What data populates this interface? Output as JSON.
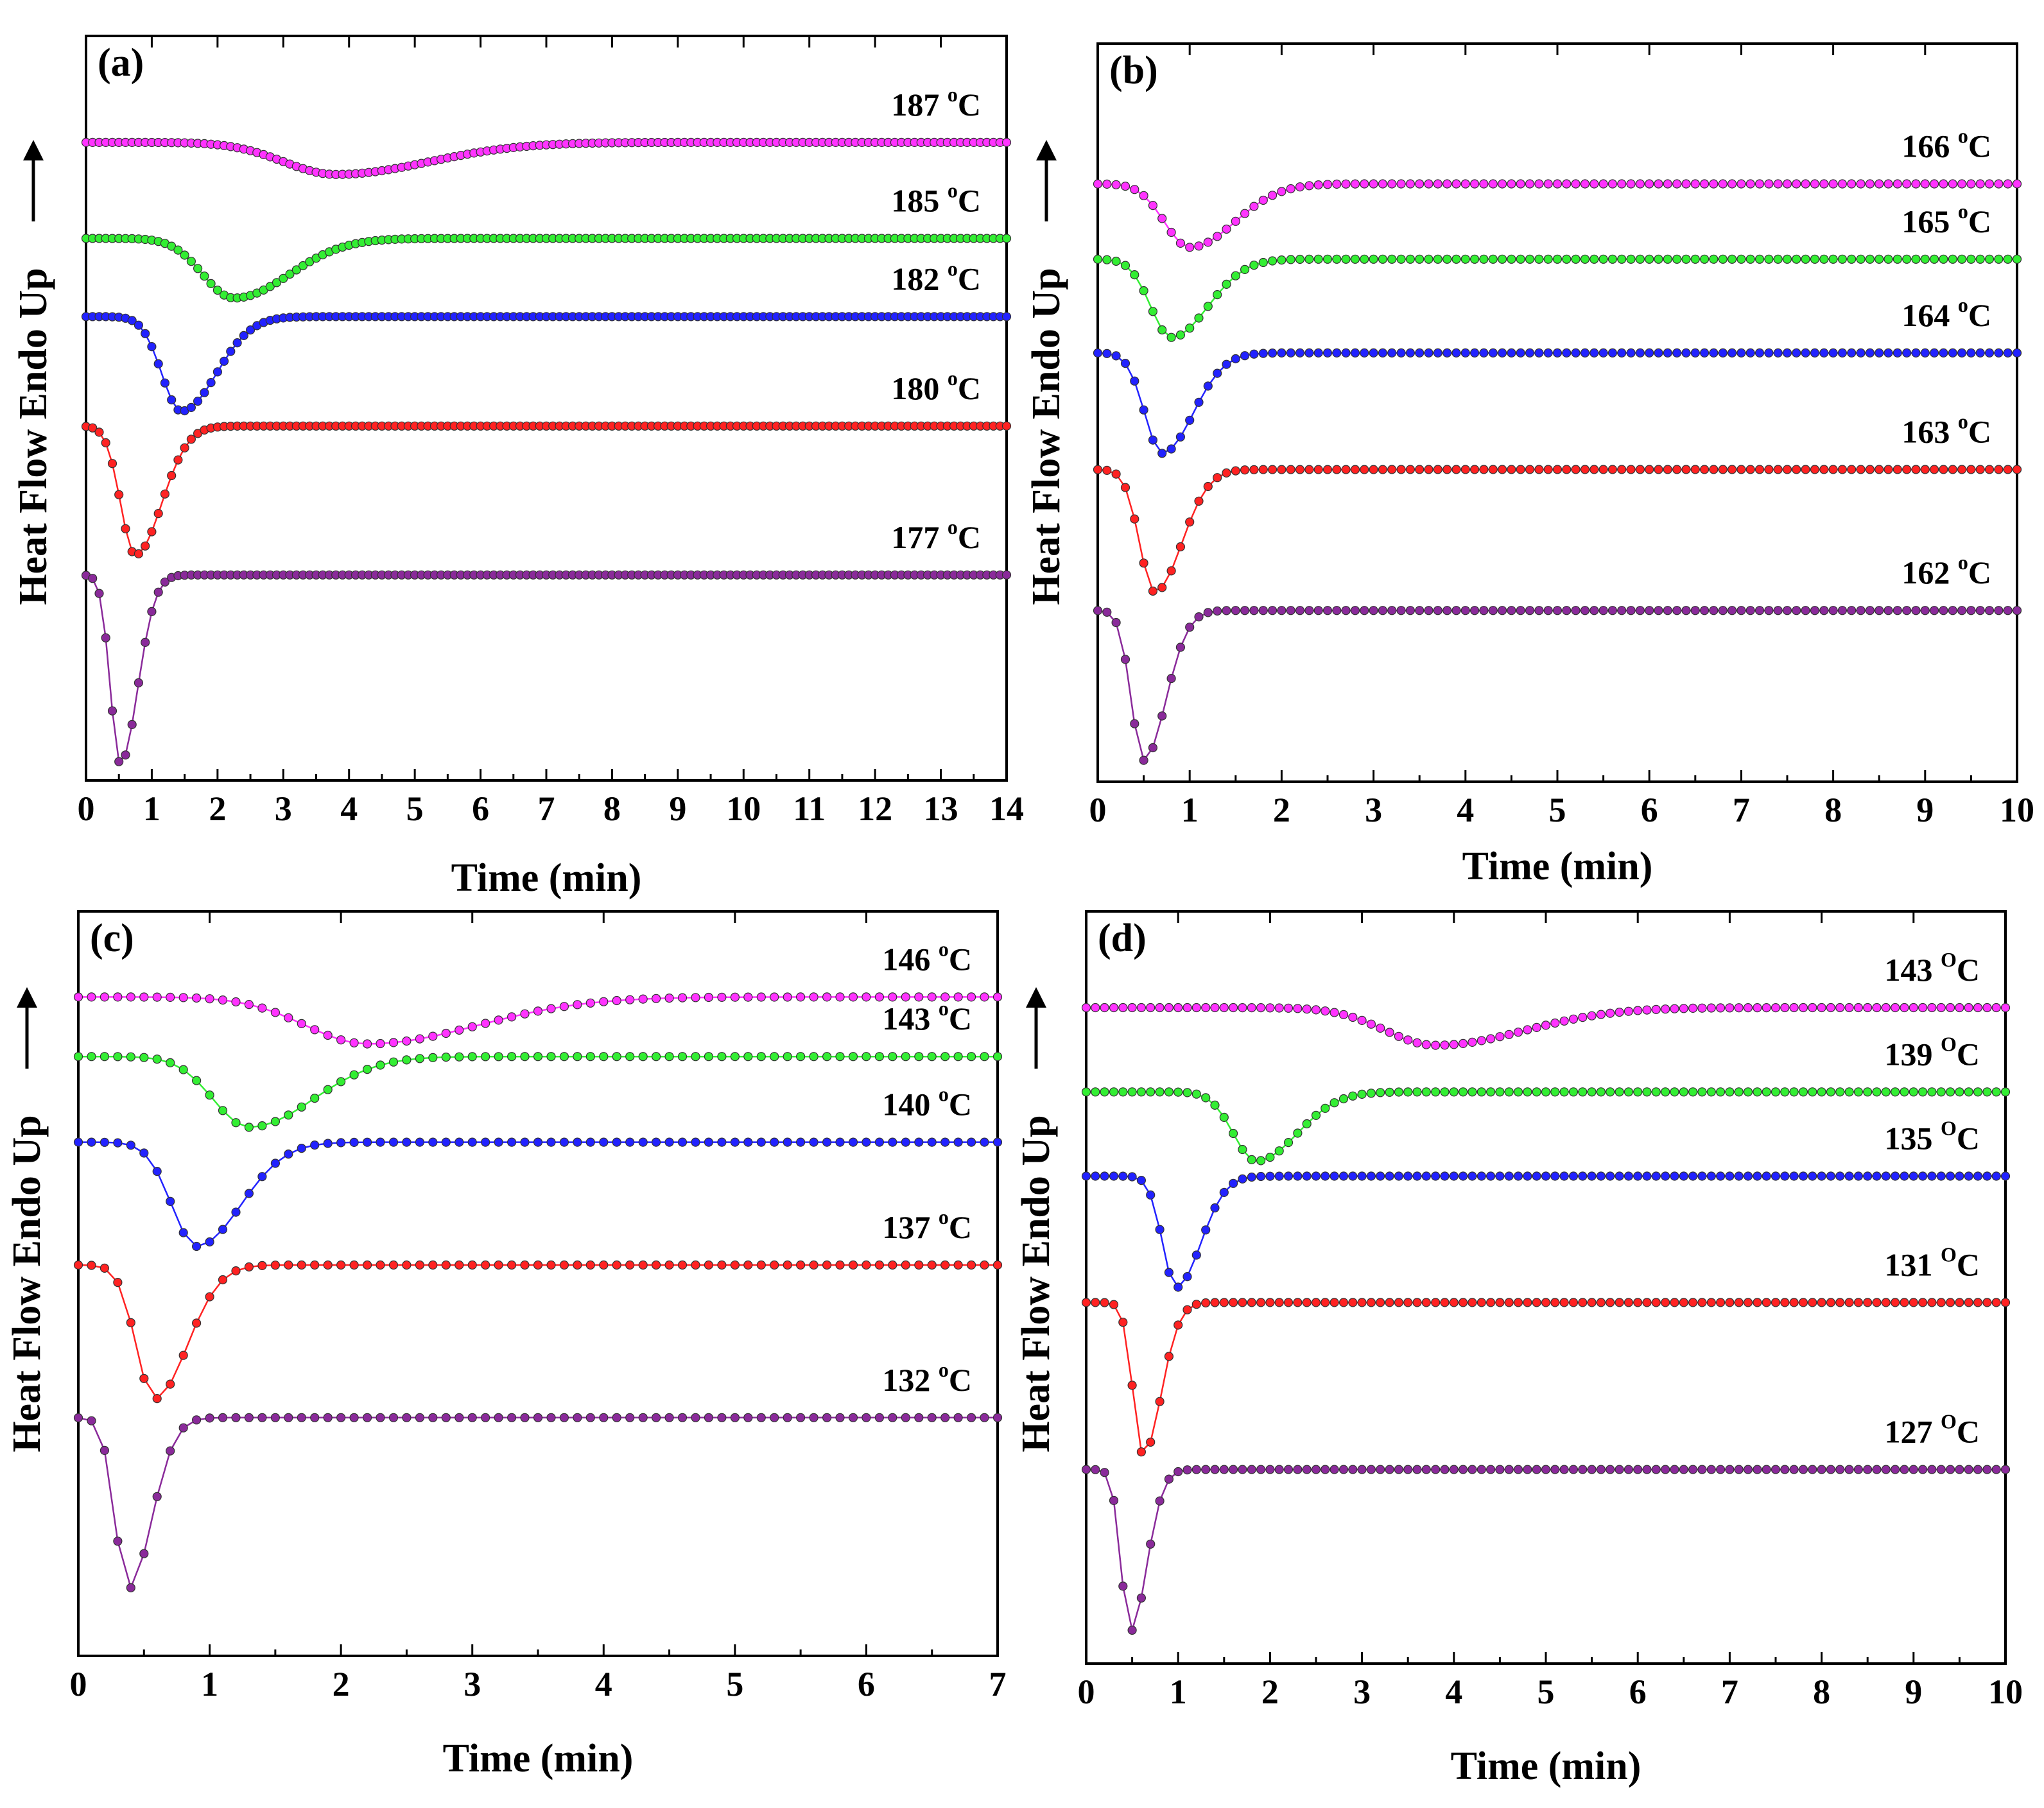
{
  "y_axis_label": "Heat Flow Endo Up",
  "x_axis_label": "Time (min)",
  "colors": {
    "magenta": "#ff33ff",
    "green": "#33ee33",
    "blue": "#2222ff",
    "red": "#ff2222",
    "purple": "#8a2a9a",
    "marker_edge": "#000000"
  },
  "chart_data": [
    {
      "type": "line",
      "panel_label": "(a)",
      "xlabel": "Time (min)",
      "ylabel": "Heat Flow Endo Up",
      "xlim": [
        0,
        14
      ],
      "x_ticks": [
        "0",
        "1",
        "2",
        "3",
        "4",
        "5",
        "6",
        "7",
        "8",
        "9",
        "10",
        "11",
        "12",
        "13",
        "14"
      ],
      "y_ticks_shown": false,
      "series": [
        {
          "name": "187",
          "unit_sup": "o",
          "unit": "C",
          "color": "magenta",
          "baseline": 0.857,
          "t_min": 3.8,
          "depth": 0.043,
          "width": 1.6,
          "dot_step": 0.1,
          "label_pos": "right"
        },
        {
          "name": "185",
          "unit_sup": "o",
          "unit": "C",
          "color": "green",
          "baseline": 0.728,
          "t_min": 2.25,
          "depth": 0.08,
          "width": 0.95,
          "dot_step": 0.1,
          "label_pos": "right"
        },
        {
          "name": "182",
          "unit_sup": "o",
          "unit": "C",
          "color": "blue",
          "baseline": 0.623,
          "t_min": 1.45,
          "depth": 0.127,
          "width": 0.6,
          "dot_step": 0.1,
          "label_pos": "right"
        },
        {
          "name": "180",
          "unit_sup": "o",
          "unit": "C",
          "color": "red",
          "baseline": 0.476,
          "t_min": 0.75,
          "depth": 0.173,
          "width": 0.45,
          "dot_step": 0.1,
          "label_pos": "right"
        },
        {
          "name": "177",
          "unit_sup": "o",
          "unit": "C",
          "color": "purple",
          "baseline": 0.276,
          "t_min": 0.52,
          "depth": 0.253,
          "width": 0.3,
          "dot_step": 0.1,
          "label_pos": "right"
        }
      ]
    },
    {
      "type": "line",
      "panel_label": "(b)",
      "xlabel": "Time (min)",
      "ylabel": "Heat Flow Endo Up",
      "xlim": [
        0,
        10
      ],
      "x_ticks": [
        "0",
        "1",
        "2",
        "3",
        "4",
        "5",
        "6",
        "7",
        "8",
        "9",
        "10"
      ],
      "y_ticks_shown": false,
      "series": [
        {
          "name": "166",
          "unit_sup": "o",
          "unit": "C",
          "color": "magenta",
          "baseline": 0.81,
          "t_min": 1.0,
          "depth": 0.086,
          "width": 0.55,
          "dot_step": 0.1,
          "label_pos": "right"
        },
        {
          "name": "165",
          "unit_sup": "o",
          "unit": "C",
          "color": "green",
          "baseline": 0.708,
          "t_min": 0.8,
          "depth": 0.106,
          "width": 0.45,
          "dot_step": 0.1,
          "label_pos": "right"
        },
        {
          "name": "164",
          "unit_sup": "o",
          "unit": "C",
          "color": "blue",
          "baseline": 0.581,
          "t_min": 0.7,
          "depth": 0.136,
          "width": 0.38,
          "dot_step": 0.1,
          "label_pos": "right"
        },
        {
          "name": "163",
          "unit_sup": "o",
          "unit": "C",
          "color": "red",
          "baseline": 0.423,
          "t_min": 0.62,
          "depth": 0.166,
          "width": 0.33,
          "dot_step": 0.1,
          "label_pos": "right"
        },
        {
          "name": "162",
          "unit_sup": "o",
          "unit": "C",
          "color": "purple",
          "baseline": 0.232,
          "t_min": 0.5,
          "depth": 0.203,
          "width": 0.27,
          "dot_step": 0.1,
          "label_pos": "right"
        }
      ]
    },
    {
      "type": "line",
      "panel_label": "(c)",
      "xlabel": "Time (min)",
      "ylabel": "Heat Flow Endo Up",
      "xlim": [
        0,
        7
      ],
      "x_ticks": [
        "0",
        "1",
        "2",
        "3",
        "4",
        "5",
        "6",
        "7"
      ],
      "y_ticks_shown": false,
      "series": [
        {
          "name": "146",
          "unit_sup": "o",
          "unit": "C",
          "color": "magenta",
          "baseline": 0.885,
          "t_min": 2.2,
          "depth": 0.063,
          "width": 0.95,
          "dot_step": 0.1,
          "label_pos": "right"
        },
        {
          "name": "143",
          "unit_sup": "o",
          "unit": "C",
          "color": "green",
          "baseline": 0.805,
          "t_min": 1.3,
          "depth": 0.095,
          "width": 0.55,
          "dot_step": 0.1,
          "label_pos": "right"
        },
        {
          "name": "140",
          "unit_sup": "o",
          "unit": "C",
          "color": "blue",
          "baseline": 0.69,
          "t_min": 0.9,
          "depth": 0.14,
          "width": 0.38,
          "dot_step": 0.1,
          "label_pos": "right"
        },
        {
          "name": "137",
          "unit_sup": "o",
          "unit": "C",
          "color": "red",
          "baseline": 0.525,
          "t_min": 0.58,
          "depth": 0.18,
          "width": 0.28,
          "dot_step": 0.1,
          "label_pos": "right"
        },
        {
          "name": "132",
          "unit_sup": "o",
          "unit": "C",
          "color": "purple",
          "baseline": 0.32,
          "t_min": 0.38,
          "depth": 0.23,
          "width": 0.2,
          "dot_step": 0.1,
          "label_pos": "right"
        }
      ]
    },
    {
      "type": "line",
      "panel_label": "(d)",
      "xlabel": "Time (min)",
      "ylabel": "Heat Flow Endo Up",
      "xlim": [
        0,
        10
      ],
      "x_ticks": [
        "0",
        "1",
        "2",
        "3",
        "4",
        "5",
        "6",
        "7",
        "8",
        "9",
        "10"
      ],
      "y_ticks_shown": false,
      "series": [
        {
          "name": "143",
          "unit_sup": "O",
          "unit": "C",
          "color": "magenta",
          "baseline": 0.872,
          "t_min": 3.8,
          "depth": 0.05,
          "width": 1.1,
          "dot_step": 0.1,
          "label_pos": "right"
        },
        {
          "name": "139",
          "unit_sup": "O",
          "unit": "C",
          "color": "green",
          "baseline": 0.76,
          "t_min": 1.85,
          "depth": 0.092,
          "width": 0.5,
          "dot_step": 0.1,
          "label_pos": "right"
        },
        {
          "name": "135",
          "unit_sup": "O",
          "unit": "C",
          "color": "blue",
          "baseline": 0.648,
          "t_min": 0.98,
          "depth": 0.148,
          "width": 0.3,
          "dot_step": 0.1,
          "label_pos": "right"
        },
        {
          "name": "131",
          "unit_sup": "O",
          "unit": "C",
          "color": "red",
          "baseline": 0.48,
          "t_min": 0.62,
          "depth": 0.202,
          "width": 0.22,
          "dot_step": 0.1,
          "label_pos": "right"
        },
        {
          "name": "127",
          "unit_sup": "O",
          "unit": "C",
          "color": "purple",
          "baseline": 0.258,
          "t_min": 0.48,
          "depth": 0.215,
          "width": 0.2,
          "dot_step": 0.1,
          "label_pos": "right"
        }
      ]
    }
  ]
}
